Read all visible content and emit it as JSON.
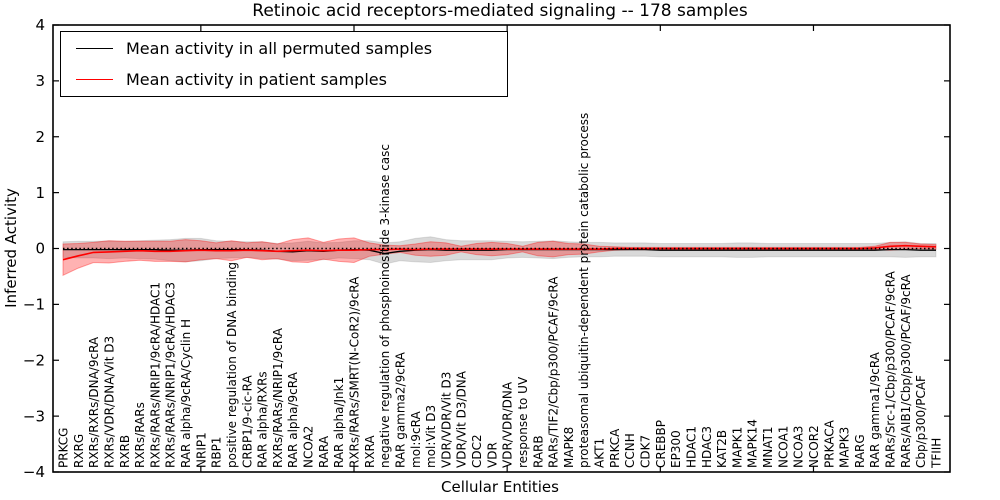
{
  "chart_data": {
    "type": "line",
    "title": "Retinoic acid receptors-mediated signaling -- 178 samples",
    "xlabel": "Cellular Entities",
    "ylabel": "Inferred Activity",
    "ylim": [
      -4,
      4
    ],
    "yticks": [
      4,
      3,
      2,
      1,
      0,
      -1,
      -2,
      -3,
      -4
    ],
    "x_major_tick_indices": [
      9,
      19,
      29,
      39,
      49
    ],
    "grid": false,
    "legend_position": "upper-left",
    "zero_reference_line": "dotted-black",
    "tick_direction": "in",
    "categories": [
      "PRKCG",
      "RXRG",
      "RXRs/RXRs/DNA/9cRA",
      "RXRs/VDR/DNA/Vit D3",
      "RXRB",
      "RXRs/RARs",
      "RXRs/RARs/NRIP1/9cRA/HDAC1",
      "RXRs/RARs/NRIP1/9cRA/HDAC3",
      "RAR alpha/9cRA/Cyclin H",
      "NRIP1",
      "RBP1",
      "positive regulation of DNA binding",
      "CRBP1/9-cic-RA",
      "RAR alpha/RXRs",
      "RXRs/RARs/NRIP1/9cRA",
      "RAR alpha/9cRA",
      "NCOA2",
      "RARA",
      "RAR alpha/Jnk1",
      "RXRs/RARs/SMRT(N-CoR2)/9cRA",
      "RXRA",
      "negative regulation of phosphoinositide 3-kinase casc",
      "RAR gamma2/9cRA",
      "mol:9cRA",
      "mol:Vit D3",
      "VDR/VDR/Vit D3",
      "VDR/Vit D3/DNA",
      "CDC2",
      "VDR",
      "VDR/VDR/DNA",
      "response to UV",
      "RARB",
      "RARs/TIF2/Cbp/p300/PCAF/9cRA",
      "MAPK8",
      "proteasomal ubiquitin-dependent protein catabolic process",
      "AKT1",
      "PRKCA",
      "CCNH",
      "CDK7",
      "CREBBP",
      "EP300",
      "HDAC1",
      "HDAC3",
      "KAT2B",
      "MAPK1",
      "MAPK14",
      "MNAT1",
      "NCOA1",
      "NCOA3",
      "NCOR2",
      "PRKACA",
      "MAPK3",
      "RARG",
      "RAR gamma1/9cRA",
      "RARs/Src-1/Cbp/p300/PCAF/9cRA",
      "RARs/AIB1/Cbp/p300/PCAF/9cRA",
      "Cbp/p300/PCAF",
      "TFIIH"
    ],
    "series": [
      {
        "name": "Mean activity in all permuted samples",
        "color": "#000000",
        "band_color": "rgba(0,0,0,0.15)",
        "band_edge_color": "rgba(0,0,0,0.10)",
        "values": [
          -0.02,
          -0.02,
          -0.02,
          -0.02,
          -0.02,
          -0.02,
          -0.02,
          -0.03,
          -0.03,
          -0.02,
          -0.02,
          -0.02,
          -0.02,
          -0.03,
          -0.05,
          -0.06,
          -0.04,
          -0.05,
          -0.03,
          -0.02,
          -0.03,
          -0.09,
          -0.05,
          -0.03,
          -0.02,
          -0.03,
          -0.03,
          -0.03,
          -0.03,
          -0.02,
          -0.02,
          -0.02,
          -0.02,
          -0.02,
          -0.02,
          -0.02,
          -0.02,
          -0.02,
          -0.02,
          -0.03,
          -0.03,
          -0.03,
          -0.03,
          -0.03,
          -0.03,
          -0.03,
          -0.03,
          -0.03,
          -0.03,
          -0.03,
          -0.03,
          -0.03,
          -0.03,
          -0.03,
          -0.02,
          -0.02,
          -0.03,
          -0.03
        ],
        "band_halfwidth": [
          0.14,
          0.15,
          0.15,
          0.16,
          0.15,
          0.16,
          0.17,
          0.19,
          0.21,
          0.2,
          0.16,
          0.15,
          0.14,
          0.15,
          0.14,
          0.16,
          0.17,
          0.15,
          0.14,
          0.16,
          0.17,
          0.19,
          0.17,
          0.21,
          0.23,
          0.19,
          0.17,
          0.17,
          0.17,
          0.15,
          0.14,
          0.15,
          0.16,
          0.14,
          0.13,
          0.13,
          0.12,
          0.12,
          0.12,
          0.12,
          0.12,
          0.12,
          0.12,
          0.12,
          0.13,
          0.13,
          0.12,
          0.12,
          0.12,
          0.12,
          0.12,
          0.12,
          0.12,
          0.12,
          0.13,
          0.14,
          0.12,
          0.12
        ]
      },
      {
        "name": "Mean activity in patient samples",
        "color": "#ff0000",
        "band_color": "rgba(255,0,0,0.30)",
        "band_edge_color": "rgba(255,0,0,0.35)",
        "values": [
          -0.2,
          -0.13,
          -0.07,
          -0.06,
          -0.05,
          -0.04,
          -0.05,
          -0.05,
          -0.04,
          -0.03,
          -0.04,
          -0.04,
          -0.03,
          -0.04,
          -0.05,
          -0.04,
          -0.03,
          -0.04,
          -0.03,
          -0.03,
          -0.02,
          -0.02,
          -0.01,
          -0.02,
          -0.01,
          -0.01,
          -0.01,
          -0.01,
          -0.01,
          -0.01,
          -0.01,
          -0.01,
          -0.01,
          -0.01,
          -0.01,
          -0.01,
          0,
          0,
          0,
          0,
          0,
          0,
          0,
          0,
          0,
          0,
          0,
          0,
          0,
          0,
          0,
          0,
          0,
          0.01,
          0.04,
          0.05,
          0.04,
          0.03
        ],
        "band_halfwidth": [
          0.28,
          0.22,
          0.18,
          0.2,
          0.18,
          0.17,
          0.18,
          0.18,
          0.2,
          0.17,
          0.14,
          0.18,
          0.13,
          0.16,
          0.13,
          0.2,
          0.22,
          0.15,
          0.2,
          0.22,
          0.12,
          0.08,
          0.06,
          0.1,
          0.13,
          0.11,
          0.05,
          0.1,
          0.12,
          0.1,
          0.05,
          0.12,
          0.14,
          0.1,
          0.09,
          0.05,
          0.03,
          0.02,
          0.02,
          0.02,
          0.02,
          0.02,
          0.02,
          0.02,
          0.02,
          0.02,
          0.02,
          0.02,
          0.02,
          0.02,
          0.02,
          0.02,
          0.02,
          0.03,
          0.07,
          0.06,
          0.04,
          0.04
        ]
      }
    ]
  }
}
